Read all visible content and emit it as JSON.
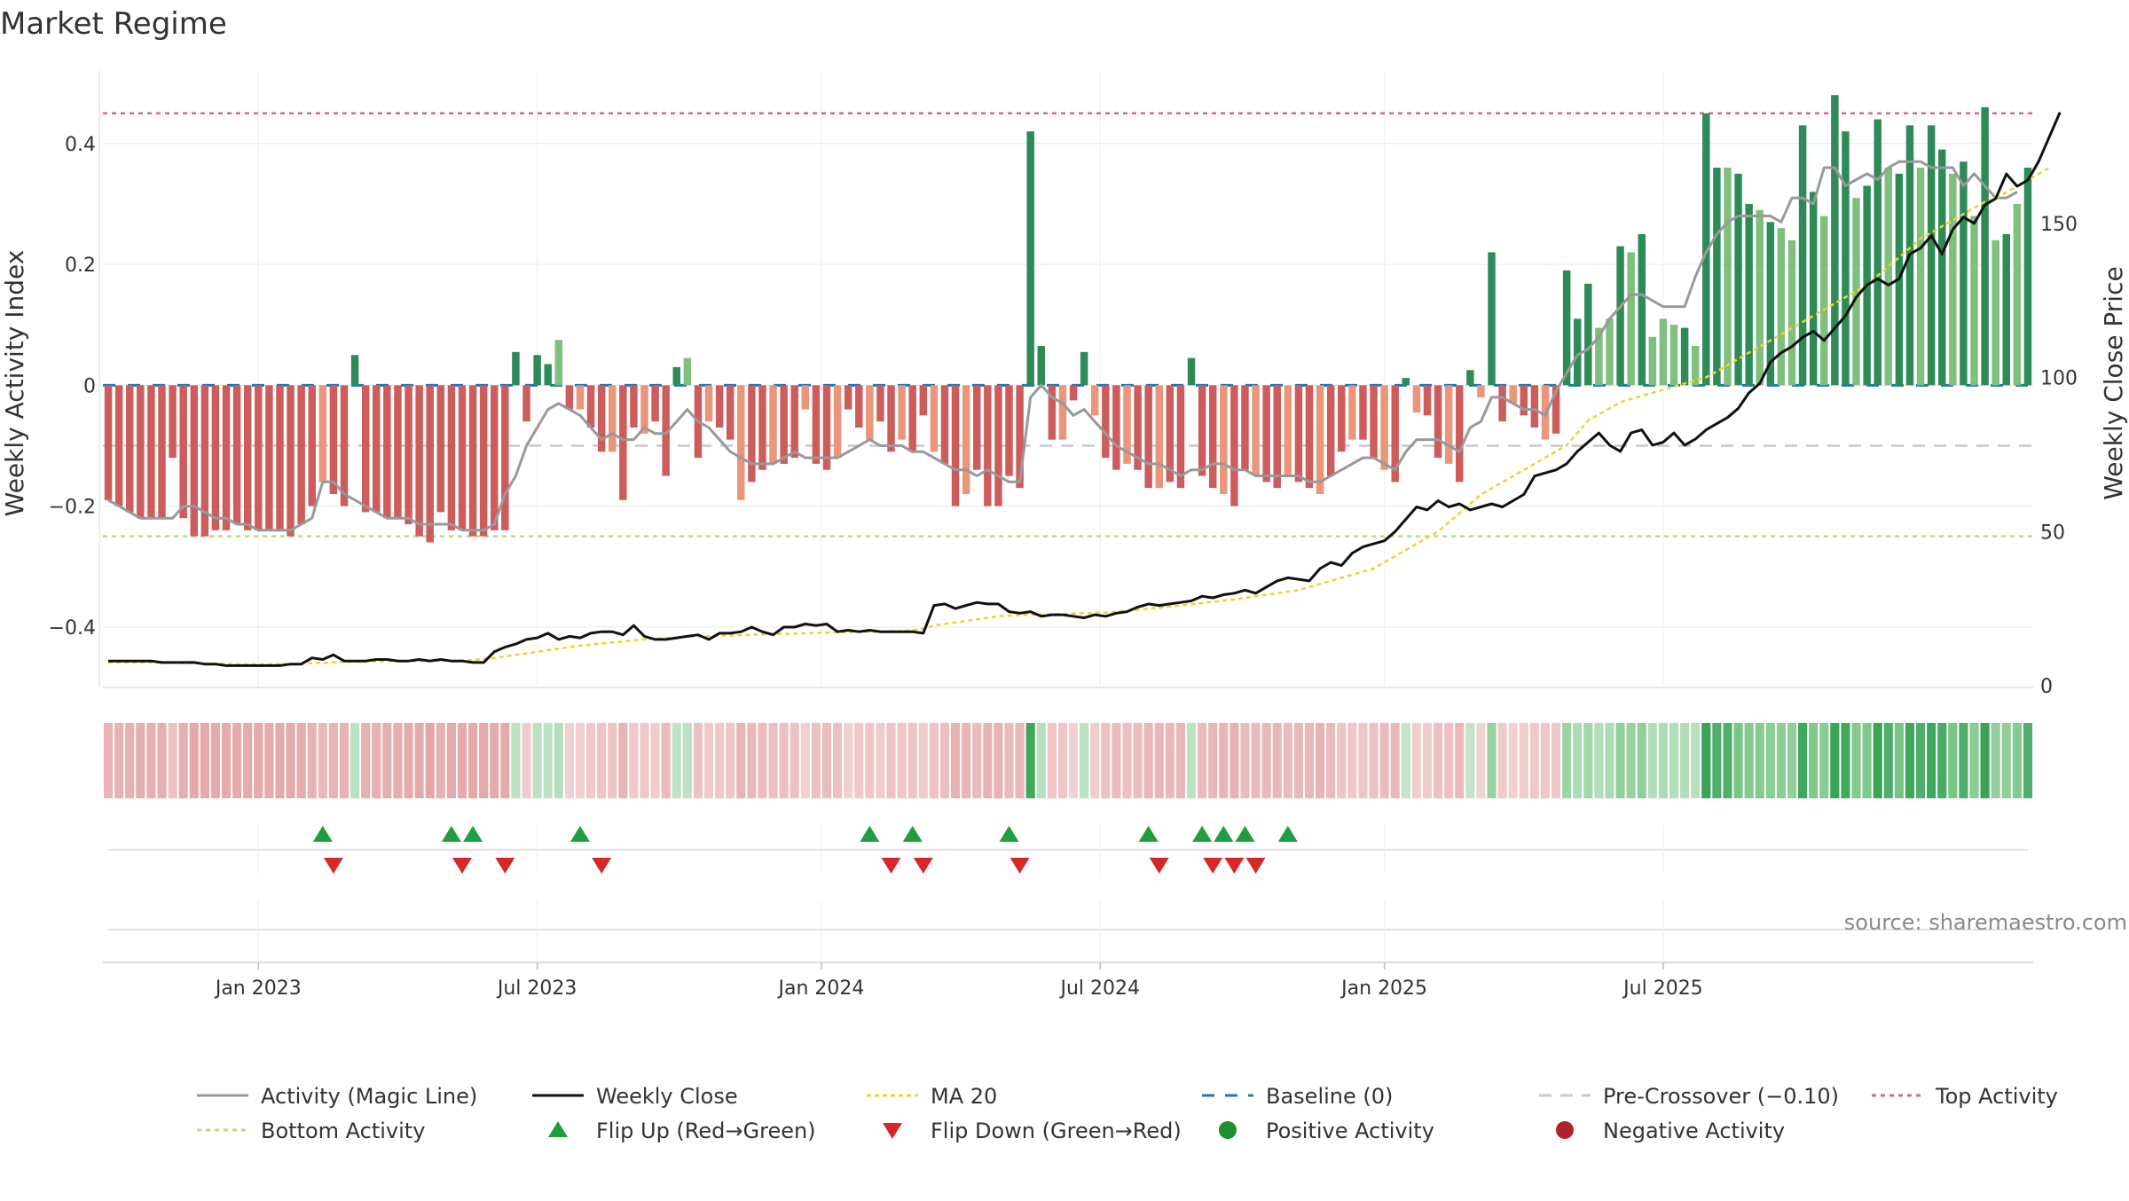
{
  "chart_data": {
    "type": "bar",
    "title": "Market Regime",
    "ylabel_left": "Weekly Activity Index",
    "ylabel_right": "Weekly Close Price",
    "left_ylim": [
      -0.5,
      0.52
    ],
    "left_ticks": [
      0.4,
      0.2,
      0,
      -0.2,
      -0.4
    ],
    "left_tick_labels": [
      "0.4",
      "0.2",
      "0",
      "−0.2",
      "−0.4"
    ],
    "right_ylim": [
      0,
      200
    ],
    "right_ticks": [
      150,
      100,
      50,
      0
    ],
    "right_tick_labels": [
      "150",
      "100",
      "50",
      "0"
    ],
    "x_tick_labels": [
      {
        "label": "Jan 2023",
        "week": 14.5
      },
      {
        "label": "Jul 2023",
        "week": 40.5
      },
      {
        "label": "Jan 2024",
        "week": 67
      },
      {
        "label": "Jul 2024",
        "week": 93
      },
      {
        "label": "Jan 2025",
        "week": 119.5
      },
      {
        "label": "Jul 2025",
        "week": 145.5
      }
    ],
    "weeks": 158,
    "reference_lines": {
      "baseline": 0,
      "pre_crossover": -0.1,
      "top": 0.45,
      "bottom": -0.25
    },
    "activity": [
      -0.19,
      -0.2,
      -0.21,
      -0.22,
      -0.22,
      -0.22,
      -0.12,
      -0.22,
      -0.25,
      -0.25,
      -0.24,
      -0.24,
      -0.23,
      -0.24,
      -0.24,
      -0.24,
      -0.24,
      -0.25,
      -0.23,
      -0.2,
      -0.16,
      -0.18,
      -0.2,
      0.05,
      -0.21,
      -0.21,
      -0.22,
      -0.22,
      -0.23,
      -0.25,
      -0.26,
      -0.21,
      -0.24,
      -0.24,
      -0.25,
      -0.25,
      -0.24,
      -0.24,
      0.055,
      -0.06,
      0.05,
      0.035,
      0.075,
      -0.04,
      -0.04,
      -0.07,
      -0.11,
      -0.11,
      -0.19,
      -0.07,
      -0.08,
      -0.06,
      -0.15,
      0.03,
      0.045,
      -0.12,
      -0.06,
      -0.07,
      -0.09,
      -0.19,
      -0.16,
      -0.14,
      -0.13,
      -0.13,
      -0.12,
      -0.04,
      -0.13,
      -0.14,
      -0.12,
      -0.04,
      -0.07,
      -0.09,
      -0.06,
      -0.11,
      -0.09,
      -0.11,
      -0.05,
      -0.11,
      -0.13,
      -0.2,
      -0.18,
      -0.14,
      -0.2,
      -0.2,
      -0.15,
      -0.17,
      0.42,
      0.065,
      -0.09,
      -0.09,
      -0.025,
      0.055,
      -0.05,
      -0.12,
      -0.14,
      -0.13,
      -0.14,
      -0.17,
      -0.17,
      -0.16,
      -0.17,
      0.045,
      -0.15,
      -0.17,
      -0.18,
      -0.2,
      -0.14,
      -0.15,
      -0.16,
      -0.17,
      -0.15,
      -0.16,
      -0.17,
      -0.18,
      -0.15,
      -0.11,
      -0.09,
      -0.09,
      -0.12,
      -0.14,
      -0.16,
      0.012,
      -0.045,
      -0.05,
      -0.12,
      -0.13,
      -0.16,
      0.025,
      -0.02,
      0.22,
      -0.06,
      -0.03,
      -0.05,
      -0.07,
      -0.09,
      -0.08,
      0.19,
      0.11,
      0.168,
      0.095,
      0.11,
      0.23,
      0.22,
      0.25,
      0.08,
      0.11,
      0.1,
      0.095,
      0.065,
      0.45,
      0.36,
      0.36,
      0.35,
      0.3,
      0.29,
      0.27,
      0.26
    ],
    "activity_tail": [
      0.24,
      0.43,
      0.32,
      0.28,
      0.48,
      0.42,
      0.31,
      0.33,
      0.44,
      0.36,
      0.35,
      0.43,
      0.36,
      0.43,
      0.39,
      0.35,
      0.37,
      0.28,
      0.46,
      0.24,
      0.25,
      0.3,
      0.36
    ],
    "magic_line": [
      -0.19,
      -0.2,
      -0.21,
      -0.22,
      -0.22,
      -0.22,
      -0.22,
      -0.2,
      -0.2,
      -0.21,
      -0.22,
      -0.22,
      -0.23,
      -0.23,
      -0.24,
      -0.24,
      -0.24,
      -0.24,
      -0.23,
      -0.22,
      -0.16,
      -0.16,
      -0.18,
      -0.19,
      -0.2,
      -0.21,
      -0.22,
      -0.22,
      -0.22,
      -0.23,
      -0.23,
      -0.23,
      -0.23,
      -0.24,
      -0.24,
      -0.24,
      -0.23,
      -0.18,
      -0.15,
      -0.1,
      -0.07,
      -0.04,
      -0.03,
      -0.04,
      -0.05,
      -0.07,
      -0.09,
      -0.08,
      -0.09,
      -0.09,
      -0.07,
      -0.08,
      -0.08,
      -0.06,
      -0.04,
      -0.06,
      -0.07,
      -0.09,
      -0.11,
      -0.12,
      -0.13,
      -0.13,
      -0.13,
      -0.12,
      -0.11,
      -0.12,
      -0.12,
      -0.12,
      -0.12,
      -0.11,
      -0.1,
      -0.09,
      -0.1,
      -0.1,
      -0.1,
      -0.11,
      -0.11,
      -0.12,
      -0.13,
      -0.14,
      -0.14,
      -0.15,
      -0.14,
      -0.15,
      -0.16,
      -0.16,
      -0.02,
      0.0,
      -0.02,
      -0.03,
      -0.05,
      -0.04,
      -0.06,
      -0.08,
      -0.1,
      -0.11,
      -0.12,
      -0.13,
      -0.13,
      -0.14,
      -0.15,
      -0.14,
      -0.14,
      -0.13,
      -0.13,
      -0.14,
      -0.14,
      -0.15,
      -0.15,
      -0.15,
      -0.15,
      -0.15,
      -0.16,
      -0.16,
      -0.15,
      -0.14,
      -0.13,
      -0.12,
      -0.12,
      -0.13,
      -0.14,
      -0.11,
      -0.09,
      -0.09,
      -0.09,
      -0.1,
      -0.11,
      -0.07,
      -0.06,
      -0.02,
      -0.02,
      -0.03,
      -0.04,
      -0.04,
      -0.05,
      -0.01,
      0.02,
      0.05,
      0.06,
      0.08,
      0.11,
      0.13,
      0.15,
      0.15,
      0.14,
      0.13,
      0.13,
      0.13,
      0.18,
      0.22,
      0.25,
      0.27,
      0.28,
      0.28,
      0.28,
      0.28
    ],
    "magic_line_tail": [
      0.27,
      0.31,
      0.31,
      0.3,
      0.36,
      0.36,
      0.33,
      0.34,
      0.35,
      0.34,
      0.36,
      0.37,
      0.37,
      0.37,
      0.36,
      0.36,
      0.36,
      0.33,
      0.35,
      0.33,
      0.31,
      0.31,
      0.32
    ],
    "weekly_close": [
      8,
      8,
      8,
      8,
      8,
      7.5,
      7.5,
      7.5,
      7.5,
      7,
      7,
      6.5,
      6.5,
      6.5,
      6.5,
      6.5,
      6.5,
      7,
      7,
      9,
      8.5,
      10,
      8,
      8,
      8,
      8.5,
      8.5,
      8,
      8,
      8.5,
      8,
      8.5,
      8,
      8,
      7.5,
      7.5,
      11,
      12.5,
      13.5,
      15,
      15.5,
      17,
      15,
      16,
      15.5,
      17,
      17.5,
      17.5,
      16.5,
      19.5,
      16,
      15,
      15,
      15.5,
      16,
      16.5,
      15,
      17,
      17,
      17.5,
      19,
      17.5,
      16.5,
      19,
      19,
      20,
      19.5,
      20,
      17.5,
      18,
      17.5,
      18,
      17.5,
      17.5,
      17.5,
      17.5,
      17,
      26,
      26.5,
      25,
      26,
      27,
      26.5,
      26.5,
      24,
      23.5,
      24,
      22.5,
      23,
      23,
      22.5,
      22,
      23,
      22.5,
      23.5,
      24,
      25.5,
      26.5,
      26,
      26.5,
      27,
      27.5,
      29,
      28.5,
      29.5,
      30,
      31,
      30,
      32,
      34,
      35,
      34.5,
      34,
      38,
      40,
      39,
      43,
      45,
      46,
      47,
      50,
      54,
      58,
      57,
      60,
      58,
      59,
      57,
      58,
      59,
      58,
      60,
      62,
      68,
      69,
      70,
      72,
      76,
      79,
      82,
      78,
      76,
      82,
      83,
      78,
      79,
      82,
      78,
      80,
      83,
      85,
      87,
      90,
      95,
      98,
      105,
      108,
      110,
      113,
      115
    ],
    "weekly_close_tail": [
      112,
      116,
      120,
      126,
      130,
      132,
      130,
      132,
      140,
      142,
      146,
      140,
      148,
      152,
      150,
      156,
      158,
      166,
      162,
      164,
      170,
      178,
      186
    ],
    "ma20": [
      7.5,
      7.5,
      7.5,
      7.5,
      7.5,
      7.5,
      7.4,
      7.3,
      7.3,
      7.2,
      7.1,
      7,
      6.9,
      6.9,
      6.9,
      6.9,
      7,
      7,
      7.1,
      7.3,
      7.4,
      7.6,
      7.7,
      7.8,
      7.8,
      7.9,
      7.9,
      7.9,
      8,
      8,
      8,
      8.1,
      8.1,
      8.2,
      8.3,
      8.6,
      9,
      9.5,
      10,
      10.5,
      11,
      11.5,
      12,
      12.5,
      13,
      13.3,
      13.7,
      14,
      14.3,
      14.7,
      15,
      15.2,
      15.4,
      15.6,
      15.8,
      16,
      16.1,
      16.2,
      16.3,
      16.4,
      16.5,
      16.6,
      16.7,
      16.8,
      16.9,
      17,
      17.1,
      17.2,
      17.3,
      17.4,
      17.5,
      17.5,
      17.5,
      17.6,
      17.7,
      18,
      18.5,
      19.5,
      20,
      20.5,
      21,
      21.5,
      22,
      22.5,
      22.7,
      22.9,
      23,
      23.1,
      23.2,
      23.3,
      23.4,
      23.5,
      23.6,
      23.7,
      24,
      24.3,
      24.6,
      25,
      25.3,
      25.6,
      26,
      26.4,
      26.8,
      27.2,
      27.6,
      28,
      28.5,
      29,
      29.5,
      30,
      30.5,
      31,
      32,
      33,
      34,
      35,
      36,
      37,
      38,
      40,
      42,
      44,
      46,
      48,
      50,
      53,
      56,
      59,
      62,
      64,
      66,
      68,
      70,
      72,
      74,
      76,
      78,
      82,
      86,
      88,
      90,
      92,
      93,
      94,
      95,
      96,
      97,
      98,
      99,
      100,
      102,
      104,
      106,
      108,
      110,
      112,
      114,
      116,
      118
    ],
    "ma20_tail": [
      120,
      122,
      124,
      126,
      128,
      130,
      133,
      136,
      139,
      142,
      145,
      147,
      149,
      151,
      153,
      155,
      157,
      158,
      160,
      162,
      164,
      166,
      168
    ],
    "flip_up_weeks": [
      20,
      32,
      34,
      44,
      71,
      75,
      84,
      97,
      102,
      104,
      106,
      110
    ],
    "flip_down_weeks": [
      21,
      33,
      37,
      46,
      73,
      76,
      85,
      98,
      103,
      105,
      107
    ],
    "legend": [
      "Activity (Magic Line)",
      "Weekly Close",
      "MA 20",
      "Baseline (0)",
      "Pre-Crossover (−0.10)",
      "Top Activity",
      "Bottom Activity",
      "Flip Up (Red→Green)",
      "Flip Down (Green→Red)",
      "Positive Activity",
      "Negative Activity"
    ],
    "legend_placement": "bottom",
    "source_text": "source: sharemaestro.com",
    "colors": {
      "pos_strong": "#2e8b57",
      "pos_light": "#7fbf7f",
      "neg_strong": "#cd5c5c",
      "neg_light": "#e9967a",
      "magic_line": "#999999",
      "close": "#111111",
      "ma20": "#ead631",
      "baseline": "#1f77b4",
      "pre_crossover": "#c8c8c8",
      "top": "#d36a85",
      "bottom": "#b9dc7a",
      "flip_up": "#1e9e3f",
      "flip_down": "#d62828",
      "positive_marker": "#1e8e2e",
      "negative_marker": "#b2222d"
    }
  }
}
